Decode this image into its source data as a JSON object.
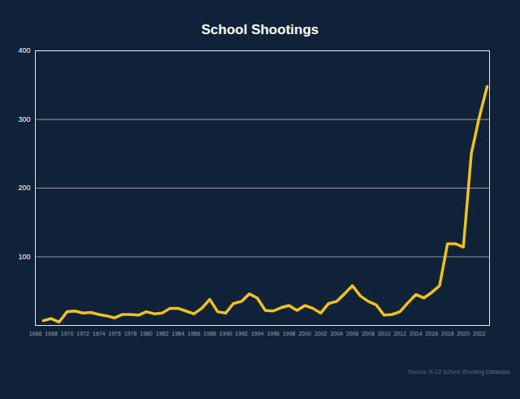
{
  "chart_data": {
    "type": "line",
    "title": "School Shootings",
    "caption": "Source: K-12 School Shooting Database",
    "color": "#f2c21b",
    "x": [
      1967,
      1968,
      1969,
      1970,
      1971,
      1972,
      1973,
      1974,
      1975,
      1976,
      1977,
      1978,
      1979,
      1980,
      1981,
      1982,
      1983,
      1984,
      1985,
      1986,
      1987,
      1988,
      1989,
      1990,
      1991,
      1992,
      1993,
      1994,
      1995,
      1996,
      1997,
      1998,
      1999,
      2000,
      2001,
      2002,
      2003,
      2004,
      2005,
      2006,
      2007,
      2008,
      2009,
      2010,
      2011,
      2012,
      2013,
      2014,
      2015,
      2016,
      2017,
      2018,
      2019,
      2020,
      2021,
      2022,
      2023
    ],
    "values": [
      7,
      10,
      5,
      20,
      21,
      18,
      19,
      16,
      14,
      11,
      16,
      16,
      15,
      20,
      17,
      18,
      25,
      25,
      21,
      17,
      25,
      38,
      20,
      18,
      32,
      35,
      46,
      40,
      22,
      21,
      26,
      29,
      22,
      29,
      25,
      18,
      32,
      35,
      46,
      58,
      43,
      35,
      30,
      15,
      16,
      20,
      33,
      45,
      40,
      48,
      58,
      119,
      119,
      114,
      250,
      303,
      348
    ],
    "xlim": [
      1966,
      2023.3
    ],
    "xticks": [
      1966,
      1968,
      1970,
      1972,
      1974,
      1976,
      1978,
      1980,
      1982,
      1984,
      1986,
      1988,
      1990,
      1992,
      1994,
      1996,
      1998,
      2000,
      2002,
      2004,
      2006,
      2008,
      2010,
      2012,
      2014,
      2016,
      2018,
      2020,
      2022
    ],
    "ylim": [
      0,
      400
    ],
    "yticks": [
      100,
      200,
      300,
      400
    ],
    "grid": true
  }
}
